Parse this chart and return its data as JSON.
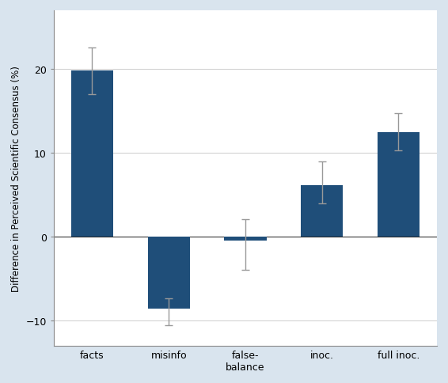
{
  "categories": [
    "facts",
    "misinfo",
    "false-\nbalance",
    "inoc.",
    "full inoc."
  ],
  "values": [
    19.8,
    -8.5,
    -0.4,
    6.2,
    12.5
  ],
  "errors_upper": [
    2.8,
    1.2,
    2.5,
    2.8,
    2.2
  ],
  "errors_lower": [
    2.8,
    2.0,
    3.5,
    2.2,
    2.2
  ],
  "bar_color": "#1f4e79",
  "error_color": "#999999",
  "plot_bg_color": "#ffffff",
  "outer_bg_color": "#d9e4ee",
  "ylabel": "Difference in Perceived Scientific Consensus (%)",
  "ylim": [
    -13,
    27
  ],
  "yticks": [
    -10,
    0,
    10,
    20
  ],
  "bar_width": 0.55,
  "figsize": [
    5.66,
    4.85
  ],
  "dpi": 100
}
